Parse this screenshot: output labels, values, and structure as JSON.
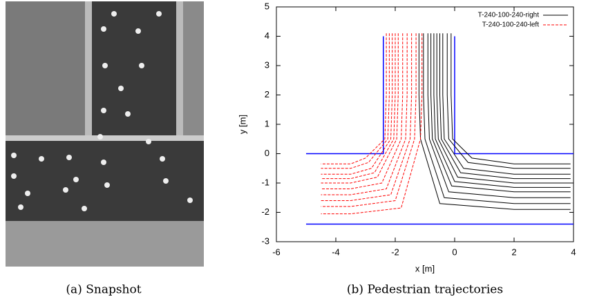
{
  "figure": {
    "captions": [
      "(a) Snapshot",
      "(b) Pedestrian trajectories"
    ]
  },
  "chart_data": {
    "type": "line",
    "x_label": "x [m]",
    "y_label": "y [m]",
    "xlim": [
      -6,
      4
    ],
    "xticks": [
      -6,
      -4,
      -2,
      0,
      2,
      4
    ],
    "ylim": [
      -3,
      5
    ],
    "yticks": [
      -3,
      -2,
      -1,
      0,
      1,
      2,
      3,
      4,
      5
    ],
    "legend": "upper right",
    "walls": {
      "color": "#0000ff",
      "pieces": [
        {
          "x": [
            -5,
            -2.4,
            -2.4
          ],
          "y": [
            0,
            0,
            4
          ]
        },
        {
          "x": [
            0,
            0,
            4
          ],
          "y": [
            4,
            0,
            0
          ]
        },
        {
          "x": [
            -5,
            4
          ],
          "y": [
            -2.4,
            -2.4
          ]
        }
      ]
    },
    "series": [
      {
        "name": "T-240-100-240-right",
        "color": "#000000",
        "line_style": "solid",
        "trajectories": [
          {
            "x": [
              -1.2,
              -1.2,
              -1.15,
              -0.5,
              2,
              3.9
            ],
            "y": [
              4.1,
              2,
              0.5,
              -1.7,
              -1.9,
              -1.9
            ]
          },
          {
            "x": [
              -1.05,
              -1.05,
              -1.0,
              -0.35,
              2,
              3.9
            ],
            "y": [
              4.1,
              2,
              0.5,
              -1.5,
              -1.7,
              -1.7
            ]
          },
          {
            "x": [
              -0.9,
              -0.9,
              -0.85,
              -0.2,
              2,
              3.9
            ],
            "y": [
              4.1,
              2,
              0.5,
              -1.3,
              -1.5,
              -1.5
            ]
          },
          {
            "x": [
              -0.8,
              -0.8,
              -0.75,
              -0.1,
              2,
              3.9
            ],
            "y": [
              4.1,
              2,
              0.5,
              -1.1,
              -1.3,
              -1.3
            ]
          },
          {
            "x": [
              -0.7,
              -0.7,
              -0.65,
              0,
              2,
              3.9
            ],
            "y": [
              4.1,
              2,
              0.5,
              -0.95,
              -1.15,
              -1.15
            ]
          },
          {
            "x": [
              -0.6,
              -0.6,
              -0.55,
              0.1,
              2,
              3.9
            ],
            "y": [
              4.1,
              2,
              0.5,
              -0.8,
              -1.0,
              -1.0
            ]
          },
          {
            "x": [
              -0.5,
              -0.5,
              -0.45,
              0.2,
              2,
              3.9
            ],
            "y": [
              4.1,
              2,
              0.5,
              -0.65,
              -0.85,
              -0.85
            ]
          },
          {
            "x": [
              -0.4,
              -0.4,
              -0.35,
              0.3,
              2,
              3.9
            ],
            "y": [
              4.1,
              2,
              0.5,
              -0.5,
              -0.7,
              -0.7
            ]
          },
          {
            "x": [
              -0.25,
              -0.25,
              -0.2,
              0.45,
              2,
              3.9
            ],
            "y": [
              4.1,
              2,
              0.5,
              -0.3,
              -0.5,
              -0.5
            ]
          },
          {
            "x": [
              -0.12,
              -0.12,
              -0.07,
              0.58,
              2,
              3.9
            ],
            "y": [
              4.1,
              2,
              0.5,
              -0.15,
              -0.35,
              -0.35
            ]
          }
        ]
      },
      {
        "name": "T-240-100-240-left",
        "color": "#ff0000",
        "line_style": "dashed",
        "trajectories": [
          {
            "x": [
              -2.3,
              -2.3,
              -2.35,
              -3.0,
              -3.5,
              -4.5
            ],
            "y": [
              4.1,
              2,
              0.5,
              -0.15,
              -0.35,
              -0.35
            ]
          },
          {
            "x": [
              -2.2,
              -2.2,
              -2.25,
              -2.9,
              -3.5,
              -4.5
            ],
            "y": [
              4.1,
              2,
              0.5,
              -0.3,
              -0.5,
              -0.5
            ]
          },
          {
            "x": [
              -2.1,
              -2.1,
              -2.15,
              -2.8,
              -3.5,
              -4.5
            ],
            "y": [
              4.1,
              2,
              0.5,
              -0.5,
              -0.7,
              -0.7
            ]
          },
          {
            "x": [
              -2.0,
              -2.0,
              -2.05,
              -2.7,
              -3.5,
              -4.5
            ],
            "y": [
              4.1,
              2,
              0.5,
              -0.65,
              -0.85,
              -0.85
            ]
          },
          {
            "x": [
              -1.9,
              -1.9,
              -1.95,
              -2.6,
              -3.5,
              -4.5
            ],
            "y": [
              4.1,
              2,
              0.5,
              -0.8,
              -1.0,
              -1.0
            ]
          },
          {
            "x": [
              -1.75,
              -1.75,
              -1.8,
              -2.45,
              -3.5,
              -4.5
            ],
            "y": [
              4.1,
              2,
              0.5,
              -1.0,
              -1.2,
              -1.2
            ]
          },
          {
            "x": [
              -1.6,
              -1.6,
              -1.65,
              -2.3,
              -3.5,
              -4.5
            ],
            "y": [
              4.1,
              2,
              0.5,
              -1.2,
              -1.4,
              -1.4
            ]
          },
          {
            "x": [
              -1.45,
              -1.45,
              -1.5,
              -2.15,
              -3.5,
              -4.5
            ],
            "y": [
              4.1,
              2,
              0.5,
              -1.4,
              -1.6,
              -1.6
            ]
          },
          {
            "x": [
              -1.3,
              -1.3,
              -1.35,
              -2.0,
              -3.5,
              -4.5
            ],
            "y": [
              4.1,
              2,
              0.5,
              -1.6,
              -1.8,
              -1.8
            ]
          },
          {
            "x": [
              -1.1,
              -1.1,
              -1.15,
              -1.8,
              -3.5,
              -4.5
            ],
            "y": [
              4.1,
              2,
              0.5,
              -1.85,
              -2.05,
              -2.05
            ]
          }
        ]
      }
    ]
  }
}
